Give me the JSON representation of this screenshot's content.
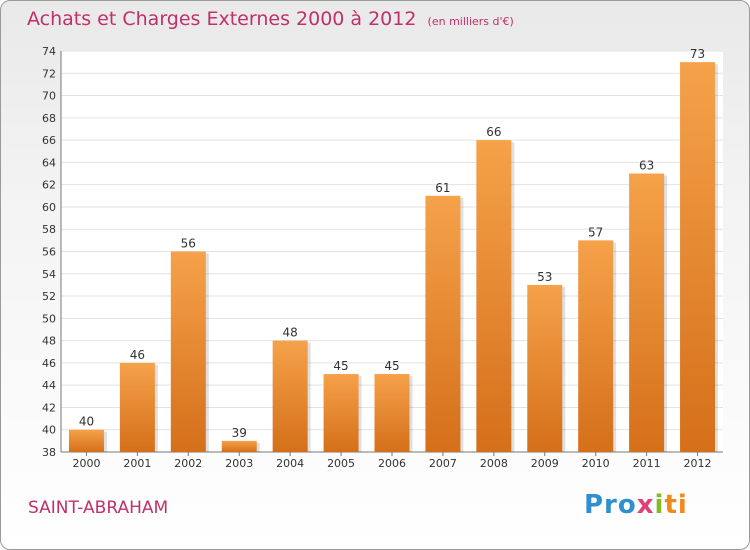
{
  "header": {
    "title": "Achats et Charges Externes 2000 à 2012",
    "subtitle": "(en milliers d'€)"
  },
  "footer": {
    "town": "SAINT-ABRAHAM",
    "brand": [
      "Pro",
      "x",
      "i",
      "ti"
    ]
  },
  "colors": {
    "accent": "#c0306a",
    "bar_light": "#f5a24a",
    "bar_dark": "#d56f1a"
  },
  "chart_data": {
    "type": "bar",
    "title": "Achats et Charges Externes 2000 à 2012",
    "subtitle": "(en milliers d'€)",
    "categories": [
      "2000",
      "2001",
      "2002",
      "2003",
      "2004",
      "2005",
      "2006",
      "2007",
      "2008",
      "2009",
      "2010",
      "2011",
      "2012"
    ],
    "values": [
      40,
      46,
      56,
      39,
      48,
      45,
      45,
      61,
      66,
      53,
      57,
      63,
      73
    ],
    "ylim": [
      38,
      74
    ],
    "yticks": [
      38,
      40,
      42,
      44,
      46,
      48,
      50,
      52,
      54,
      56,
      58,
      60,
      62,
      64,
      66,
      68,
      70,
      72,
      74
    ],
    "grid": true,
    "data_labels": true
  }
}
